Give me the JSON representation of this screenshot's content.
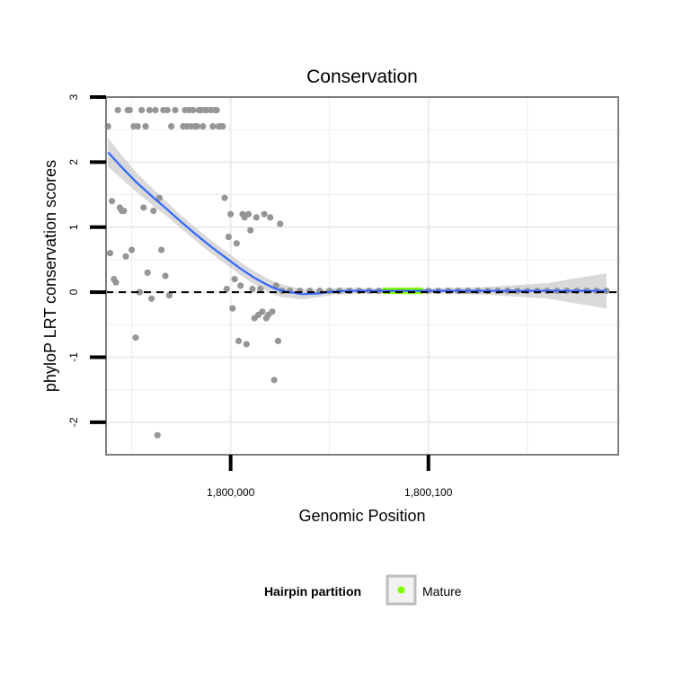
{
  "chart_data": {
    "type": "scatter",
    "title": "Conservation",
    "xlabel": "Genomic Position",
    "ylabel": "phyloP LRT conservation scores",
    "xlim": [
      1799937,
      1800196
    ],
    "ylim": [
      -2.5,
      3
    ],
    "x_ticks": [
      1800000,
      1800100
    ],
    "x_tick_labels": [
      "1,800,000",
      "1,800,100"
    ],
    "y_ticks": [
      -2,
      -1,
      0,
      1,
      2,
      3
    ],
    "y_tick_labels": [
      "-2",
      "-1",
      "0",
      "1",
      "2",
      "3"
    ],
    "grid": true,
    "reference_line_y": 0,
    "legend": {
      "title": "Hairpin partition",
      "position": "bottom",
      "entries": [
        {
          "label": "Mature",
          "color": "#7fff00"
        }
      ]
    },
    "colors": {
      "points": "#969696",
      "mature": "#7fff00",
      "smooth": "#3366ff",
      "ribbon": "#cccccc",
      "grid": "#ebebeb",
      "panel_border": "#7f7f7f"
    },
    "series": [
      {
        "x": [
          1799970,
          1799972,
          1799976,
          1799977,
          1799978,
          1799979,
          1799980,
          1799981,
          1799982,
          1799983,
          1799984,
          1799985,
          1799986,
          1799987,
          1799988,
          1799990,
          1799991,
          1799992,
          1799993,
          1799994,
          1799995,
          1799996,
          1799997,
          1799998,
          1799999,
          1800000,
          1800001,
          1800002,
          1800003,
          1800004,
          1800005,
          1800006,
          1800007,
          1800008,
          1800009,
          1800010,
          1800011,
          1800012,
          1800013,
          1800014,
          1800015,
          1800016,
          1800017,
          1800018,
          1800019,
          1800020,
          1800021,
          1800022,
          1800023,
          1800024,
          1800025
        ],
        "y": [
          2.55,
          2.8,
          2.55,
          2.8,
          2.55,
          2.8,
          2.55,
          2.8,
          2.55,
          2.55,
          2.8,
          2.8,
          2.55,
          2.8,
          2.8,
          2.8,
          2.55,
          2.8,
          2.8,
          2.55,
          2.55,
          2.55,
          1.45,
          0.05,
          0.85,
          1.2,
          -0.25,
          0.2,
          0.75,
          -0.75,
          0.1,
          1.2,
          1.15,
          -0.8,
          1.2,
          0.95,
          0.05,
          -0.4,
          1.15,
          -0.35,
          0.05,
          -0.3,
          1.2,
          -0.4,
          -0.35,
          1.15,
          -0.3,
          -1.35,
          0.1,
          -0.75,
          1.05
        ]
      },
      {
        "x": [
          1799938,
          1799939,
          1799940,
          1799941,
          1799942,
          1799943,
          1799944,
          1799945,
          1799946,
          1799947,
          1799948,
          1799949,
          1799950,
          1799951,
          1799952,
          1799953,
          1799954,
          1799955,
          1799956,
          1799957,
          1799958,
          1799959,
          1799960,
          1799961,
          1799962,
          1799963,
          1799964,
          1799965,
          1799966,
          1799967,
          1799968,
          1799969
        ],
        "y": [
          2.55,
          0.6,
          1.4,
          0.2,
          0.15,
          2.8,
          1.3,
          1.25,
          1.25,
          0.55,
          2.8,
          2.8,
          0.65,
          2.55,
          -0.7,
          2.55,
          0.0,
          2.8,
          1.3,
          2.55,
          0.3,
          2.8,
          -0.1,
          1.25,
          2.8,
          -2.2,
          1.45,
          0.65,
          2.8,
          0.25,
          2.8,
          -0.05
        ]
      },
      {
        "x": [
          1800026,
          1800030,
          1800035,
          1800040,
          1800045,
          1800050,
          1800055,
          1800060,
          1800065,
          1800070,
          1800075,
          1800080,
          1800085,
          1800090,
          1800095,
          1800100,
          1800105,
          1800110,
          1800115,
          1800120,
          1800125,
          1800130,
          1800135,
          1800140,
          1800145,
          1800150,
          1800155,
          1800160,
          1800165,
          1800170,
          1800175,
          1800180,
          1800185,
          1800190
        ],
        "y": [
          0.02,
          0.02,
          0.02,
          0.02,
          0.02,
          0.02,
          0.02,
          0.02,
          0.02,
          0.02,
          0.02,
          0.02,
          0.02,
          0.02,
          0.02,
          0.02,
          0.02,
          0.02,
          0.02,
          0.02,
          0.02,
          0.02,
          0.02,
          0.02,
          0.02,
          0.02,
          0.02,
          0.02,
          0.02,
          0.02,
          0.02,
          0.02,
          0.02,
          0.02
        ]
      }
    ],
    "mature_segment": {
      "x_start": 1800078,
      "x_end": 1800096,
      "y": 0.02
    },
    "smooth": {
      "x": [
        1799938,
        1799945,
        1799952,
        1799960,
        1799968,
        1799975,
        1799982,
        1799990,
        1799998,
        1800005,
        1800012,
        1800018,
        1800022,
        1800026,
        1800030,
        1800036,
        1800044,
        1800052,
        1800060,
        1800070,
        1800080,
        1800100,
        1800130,
        1800160,
        1800190
      ],
      "y": [
        2.15,
        1.92,
        1.7,
        1.48,
        1.27,
        1.08,
        0.9,
        0.7,
        0.52,
        0.36,
        0.22,
        0.12,
        0.06,
        0.02,
        0.0,
        -0.03,
        -0.02,
        0.01,
        0.02,
        0.02,
        0.02,
        0.02,
        0.02,
        0.02,
        0.02
      ],
      "se": [
        0.22,
        0.18,
        0.15,
        0.13,
        0.11,
        0.1,
        0.1,
        0.1,
        0.1,
        0.1,
        0.1,
        0.1,
        0.1,
        0.1,
        0.09,
        0.08,
        0.06,
        0.05,
        0.05,
        0.04,
        0.04,
        0.04,
        0.06,
        0.12,
        0.27
      ]
    }
  }
}
